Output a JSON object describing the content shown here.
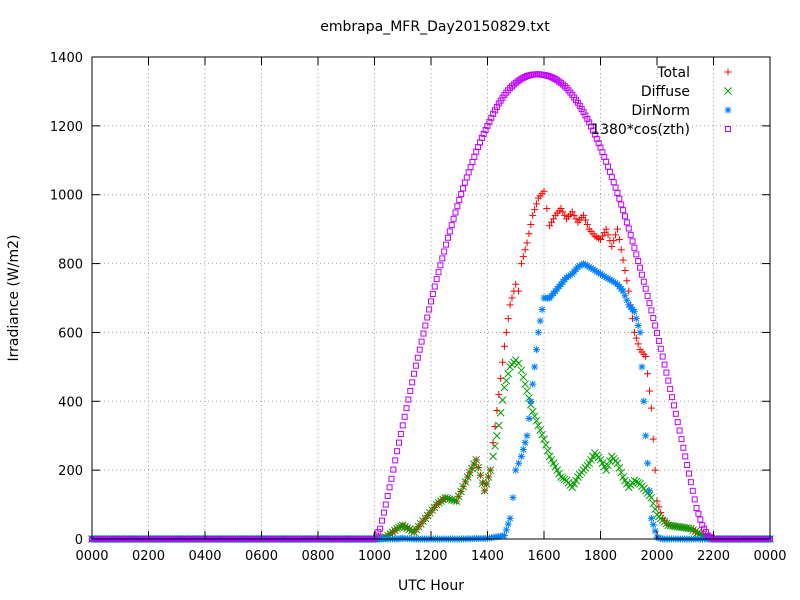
{
  "chart_data": {
    "type": "scatter",
    "title": "embrapa_MFR_Day20150829.txt",
    "xlabel": "UTC Hour",
    "ylabel": "Irradiance (W/m2)",
    "xlim": [
      0,
      2400
    ],
    "ylim": [
      0,
      1400
    ],
    "x_ticks": [
      "0000",
      "0200",
      "0400",
      "0600",
      "0800",
      "1000",
      "1200",
      "1400",
      "1600",
      "1800",
      "2000",
      "2200",
      "0000"
    ],
    "y_ticks": [
      "0",
      "200",
      "400",
      "600",
      "800",
      "1000",
      "1200",
      "1400"
    ],
    "grid": true,
    "legend_position": "top-right",
    "series": [
      {
        "name": "Total",
        "color": "#ff0000",
        "marker": "plus",
        "x": [
          0,
          500,
          1000,
          1040,
          1080,
          1100,
          1140,
          1180,
          1220,
          1250,
          1290,
          1330,
          1360,
          1390,
          1410,
          1420,
          1440,
          1460,
          1480,
          1500,
          1510,
          1520,
          1540,
          1560,
          1580,
          1600,
          1610,
          1620,
          1640,
          1660,
          1680,
          1700,
          1720,
          1740,
          1760,
          1780,
          1800,
          1820,
          1840,
          1860,
          1880,
          1900,
          1920,
          1940,
          1960,
          1980,
          2000,
          2020,
          2040,
          2080,
          2120,
          2160,
          2200,
          2400
        ],
        "y": [
          0,
          0,
          0,
          5,
          30,
          40,
          20,
          60,
          100,
          120,
          110,
          180,
          230,
          140,
          200,
          280,
          420,
          560,
          680,
          740,
          720,
          800,
          860,
          940,
          990,
          1010,
          960,
          910,
          940,
          960,
          930,
          950,
          920,
          940,
          900,
          880,
          870,
          900,
          850,
          900,
          810,
          720,
          600,
          550,
          530,
          380,
          110,
          60,
          40,
          35,
          30,
          10,
          0,
          0
        ]
      },
      {
        "name": "Diffuse",
        "color": "#00a000",
        "marker": "cross",
        "x": [
          0,
          500,
          1000,
          1040,
          1080,
          1100,
          1140,
          1180,
          1220,
          1250,
          1290,
          1330,
          1360,
          1390,
          1410,
          1420,
          1440,
          1460,
          1480,
          1500,
          1510,
          1520,
          1540,
          1560,
          1580,
          1600,
          1620,
          1640,
          1660,
          1680,
          1700,
          1720,
          1740,
          1760,
          1780,
          1800,
          1820,
          1840,
          1860,
          1880,
          1900,
          1920,
          1940,
          1960,
          1980,
          2000,
          2020,
          2040,
          2080,
          2120,
          2160,
          2200,
          2400
        ],
        "y": [
          0,
          0,
          0,
          5,
          30,
          40,
          20,
          60,
          100,
          120,
          110,
          180,
          230,
          140,
          200,
          240,
          330,
          440,
          500,
          520,
          510,
          490,
          430,
          370,
          330,
          290,
          240,
          210,
          180,
          170,
          150,
          180,
          200,
          220,
          250,
          230,
          200,
          240,
          220,
          180,
          150,
          170,
          160,
          140,
          120,
          70,
          55,
          40,
          35,
          30,
          10,
          0,
          0
        ]
      },
      {
        "name": "DirNorm",
        "color": "#0080ff",
        "marker": "star",
        "x": [
          0,
          500,
          1000,
          1080,
          1100,
          1140,
          1200,
          1300,
          1400,
          1460,
          1480,
          1490,
          1500,
          1510,
          1520,
          1540,
          1560,
          1580,
          1600,
          1620,
          1640,
          1660,
          1680,
          1700,
          1720,
          1740,
          1760,
          1780,
          1800,
          1820,
          1840,
          1860,
          1880,
          1900,
          1920,
          1940,
          1960,
          1980,
          2000,
          2020,
          2200,
          2400
        ],
        "y": [
          0,
          0,
          0,
          0,
          2,
          0,
          0,
          0,
          2,
          10,
          60,
          120,
          200,
          220,
          240,
          300,
          450,
          600,
          700,
          700,
          720,
          740,
          760,
          770,
          790,
          800,
          790,
          780,
          770,
          760,
          750,
          740,
          720,
          680,
          660,
          600,
          300,
          60,
          5,
          0,
          0,
          0
        ]
      },
      {
        "name": "1380*cos(zth)",
        "color": "#c000ff",
        "marker": "square",
        "x": [
          0,
          1000,
          1020,
          1040,
          1060,
          1080,
          1100,
          1120,
          1140,
          1160,
          1180,
          1200,
          1220,
          1240,
          1260,
          1280,
          1300,
          1320,
          1340,
          1360,
          1380,
          1400,
          1420,
          1440,
          1460,
          1480,
          1500,
          1520,
          1540,
          1560,
          1580,
          1600,
          1620,
          1640,
          1660,
          1680,
          1700,
          1720,
          1740,
          1760,
          1780,
          1800,
          1820,
          1840,
          1860,
          1880,
          1900,
          1920,
          1940,
          1960,
          1980,
          2000,
          2020,
          2040,
          2060,
          2080,
          2100,
          2120,
          2140,
          2160,
          2180,
          2200,
          2400
        ],
        "y": [
          0,
          0,
          30,
          100,
          175,
          255,
          330,
          405,
          480,
          550,
          620,
          690,
          755,
          815,
          875,
          930,
          985,
          1035,
          1080,
          1125,
          1165,
          1200,
          1235,
          1265,
          1290,
          1310,
          1325,
          1337,
          1345,
          1349,
          1350,
          1348,
          1344,
          1336,
          1325,
          1310,
          1290,
          1267,
          1240,
          1210,
          1175,
          1137,
          1096,
          1052,
          1005,
          955,
          902,
          846,
          788,
          727,
          664,
          598,
          530,
          460,
          388,
          315,
          240,
          165,
          90,
          40,
          10,
          0,
          0
        ]
      }
    ]
  }
}
